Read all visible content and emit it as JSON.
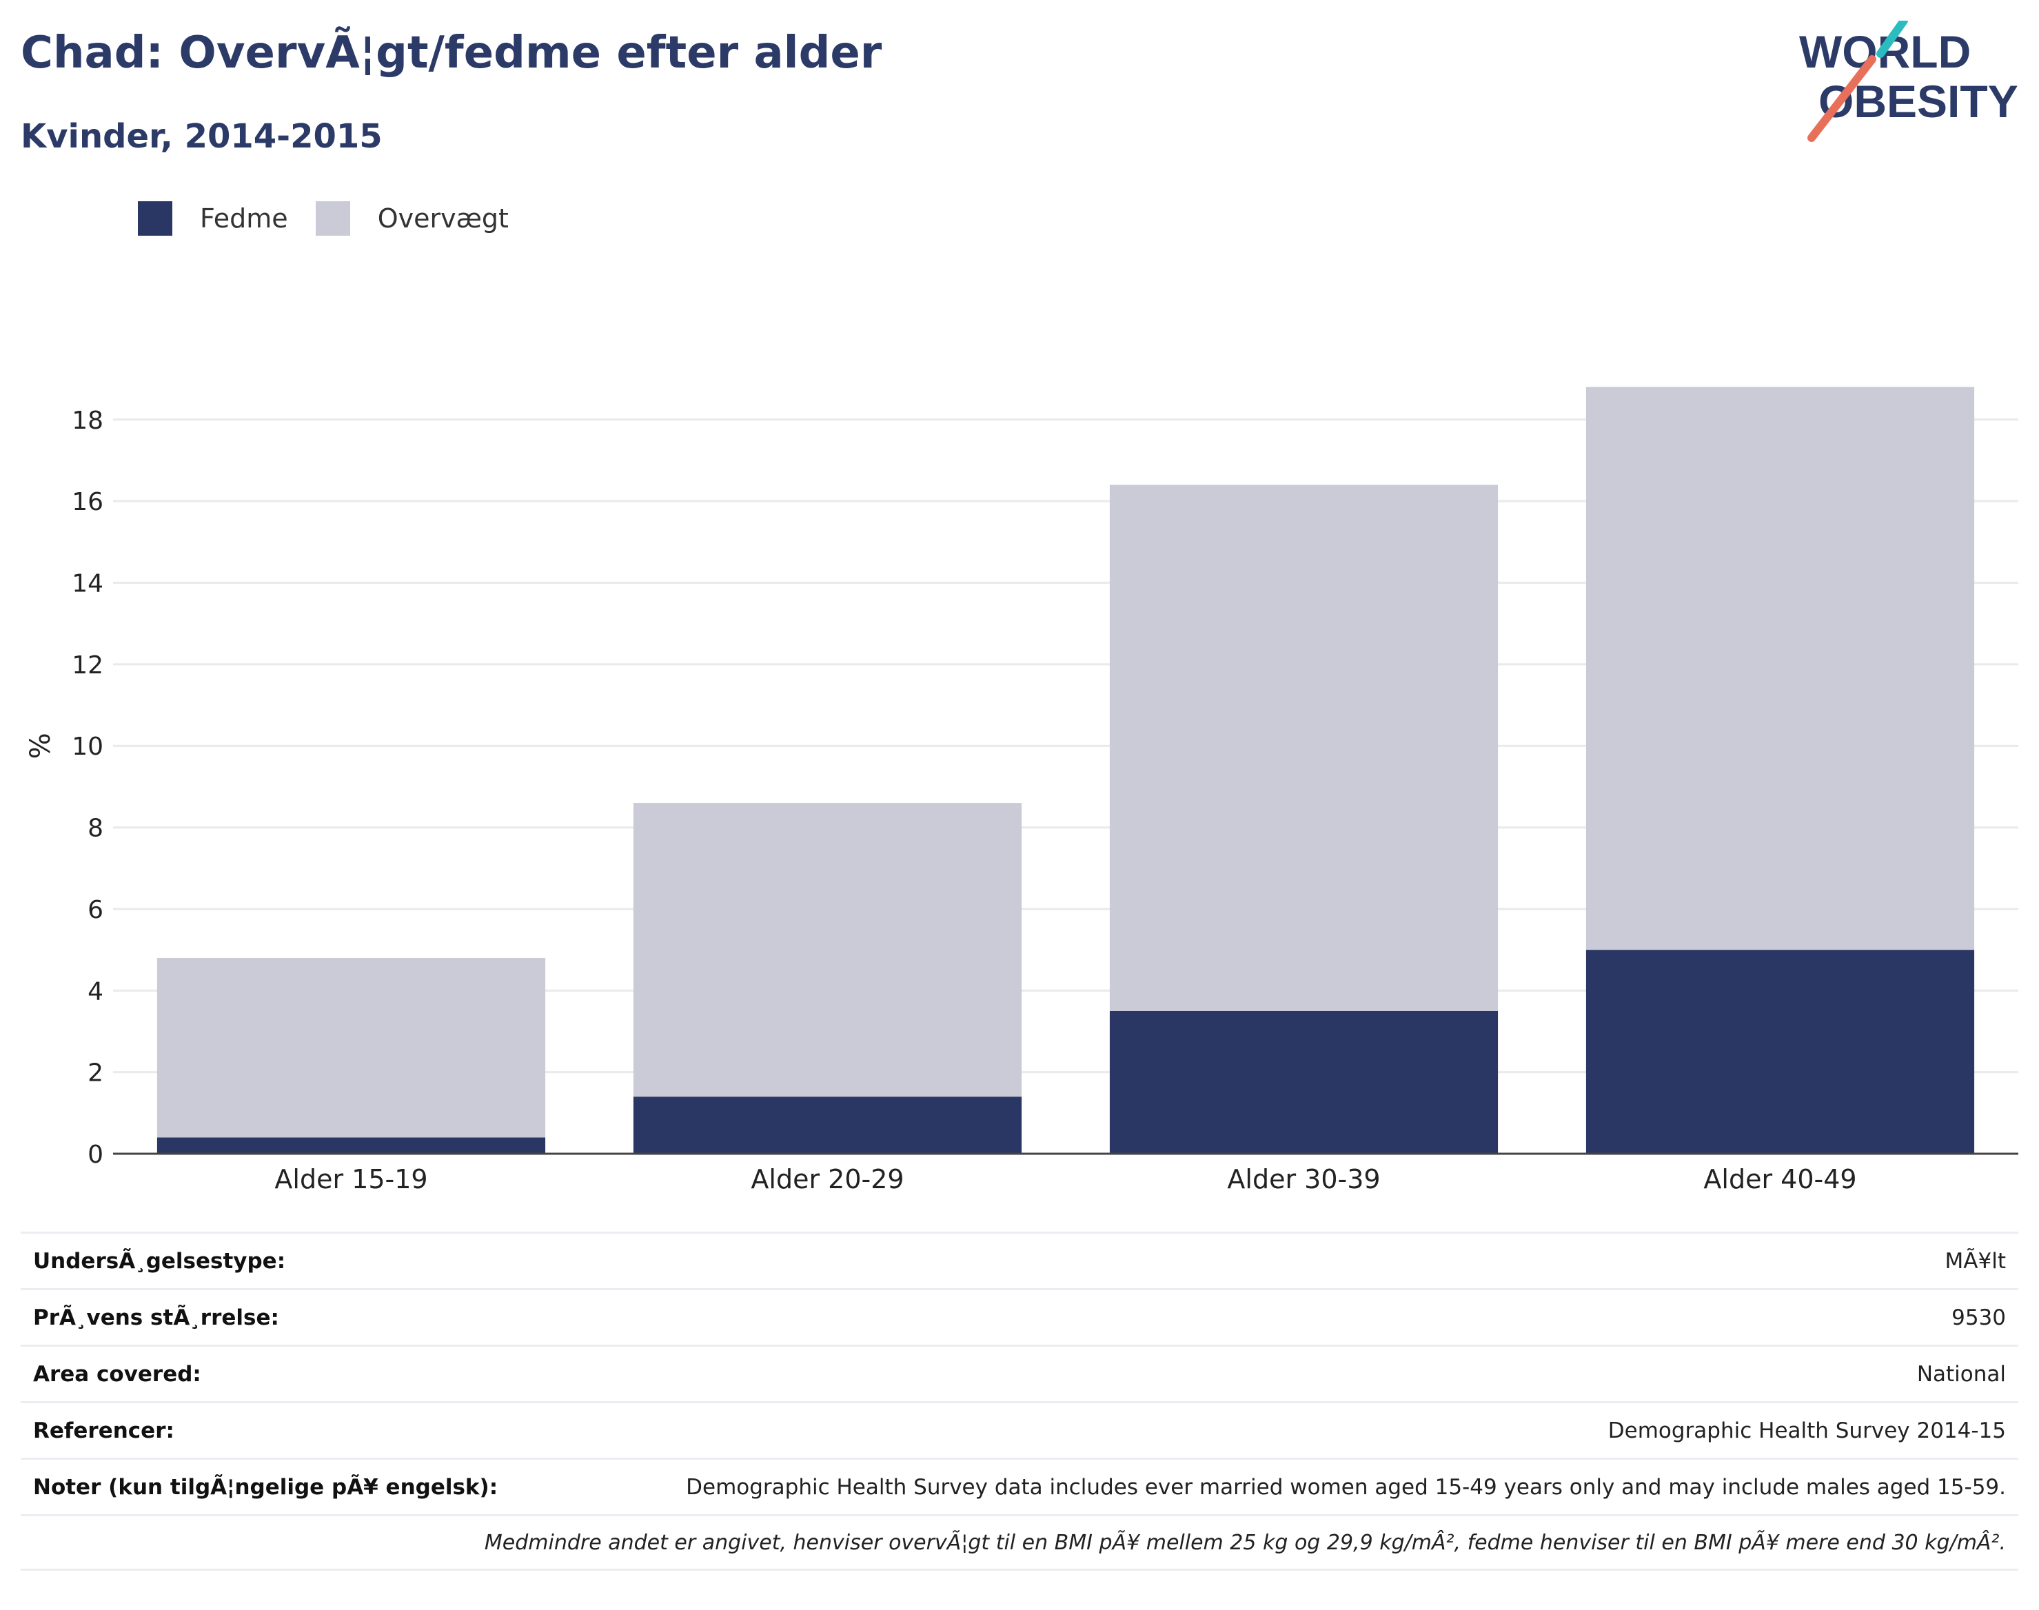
{
  "header": {
    "title": "Chad: OvervÃ¦gt/fedme efter alder",
    "subtitle": "Kvinder, 2014-2015"
  },
  "logo": {
    "line1": "WORLD",
    "line2": "OBESITY",
    "text_color": "#2b3a67",
    "accent_teal": "#2bbcc0",
    "accent_coral": "#e8705a"
  },
  "legend": {
    "items": [
      {
        "label": "Fedme",
        "color": "#2a3764"
      },
      {
        "label": "Overvægt",
        "color": "#cacbd7"
      }
    ]
  },
  "chart_data": {
    "type": "bar",
    "stacked": true,
    "categories": [
      "Alder 15-19",
      "Alder 20-29",
      "Alder 30-39",
      "Alder 40-49"
    ],
    "series": [
      {
        "name": "Fedme",
        "values": [
          0.4,
          1.4,
          3.5,
          5.0
        ],
        "color": "#2a3764"
      },
      {
        "name": "Overvægt",
        "values": [
          4.4,
          7.2,
          12.9,
          13.8
        ],
        "color": "#cacbd7"
      }
    ],
    "ylabel": "%",
    "ylim": [
      0,
      19.5
    ],
    "yticks": [
      0,
      2,
      4,
      6,
      8,
      10,
      12,
      14,
      16,
      18
    ],
    "grid": true,
    "legend_position": "top-left"
  },
  "info": {
    "rows": [
      {
        "key": "UndersÃ¸gelsestype:",
        "value": "MÃ¥lt"
      },
      {
        "key": "PrÃ¸vens stÃ¸rrelse:",
        "value": "9530"
      },
      {
        "key": "Area covered:",
        "value": "National"
      },
      {
        "key": "Referencer:",
        "value": "Demographic Health Survey 2014-15"
      },
      {
        "key": "Noter (kun tilgÃ¦ngelige pÃ¥ engelsk):",
        "value": "Demographic Health Survey data includes ever married women aged 15-49 years only and may include males aged 15-59."
      }
    ],
    "footnote": "Medmindre andet er angivet, henviser overvÃ¦gt til en BMI pÃ¥ mellem 25 kg og 29,9 kg/mÂ², fedme henviser til en BMI pÃ¥ mere end 30 kg/mÂ²."
  }
}
